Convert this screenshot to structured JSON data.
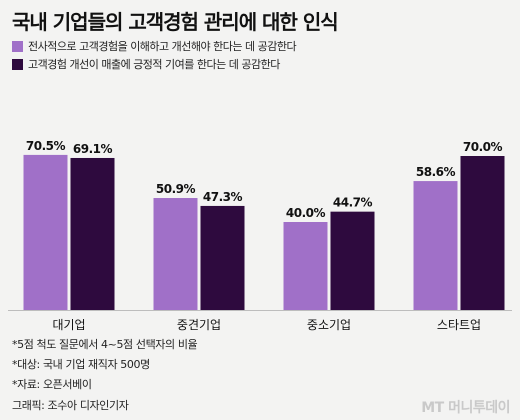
{
  "title": "국내 기업들의 고객경험 관리에 대한 인식",
  "legend": [
    {
      "label": "전사적으로 고객경험을 이해하고 개선해야 한다는 데 공감한다",
      "color": "#a070c8"
    },
    {
      "label": "고객경험 개선이 매출에 긍정적 기여를 한다는 데 공감한다",
      "color": "#2e0a3e"
    }
  ],
  "chart_data": {
    "type": "bar",
    "categories": [
      "대기업",
      "중견기업",
      "중소기업",
      "스타트업"
    ],
    "series": [
      {
        "name": "전사적으로 고객경험을 이해하고 개선해야 한다는 데 공감한다",
        "values": [
          70.5,
          50.9,
          40.0,
          58.6
        ],
        "color": "#a070c8"
      },
      {
        "name": "고객경험 개선이 매출에 긍정적 기여를 한다는 데 공감한다",
        "values": [
          69.1,
          47.3,
          44.7,
          70.0
        ],
        "color": "#2e0a3e"
      }
    ],
    "value_suffix": "%",
    "ylim": [
      0,
      75
    ]
  },
  "notes": [
    "*5점 척도 질문에서 4~5점 선택자의 비율",
    "*대상: 국내 기업 재직자 500명",
    "*자료: 오픈서베이"
  ],
  "credit": "그래픽: 조수아 디자인기자",
  "logo": "MT 머니투데이"
}
